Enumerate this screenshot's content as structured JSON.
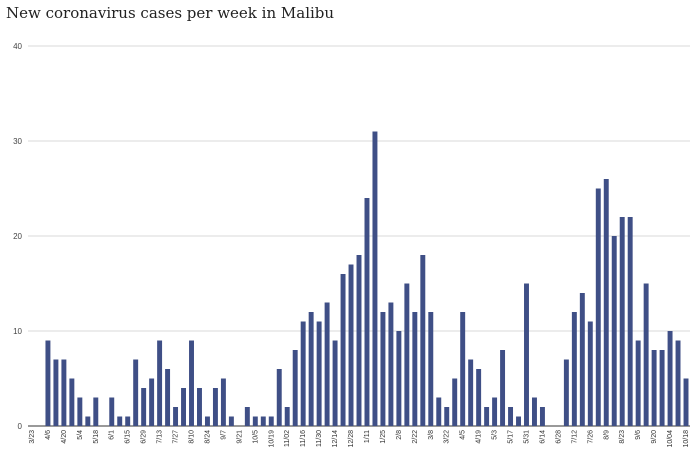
{
  "chart_data": {
    "type": "bar",
    "title": "New coronavirus cases per week in Malibu",
    "xlabel": "",
    "ylabel": "",
    "ylim": [
      0,
      40
    ],
    "yticks": [
      0,
      10,
      20,
      30,
      40
    ],
    "grid": true,
    "bar_color": "#3f4f86",
    "categories": [
      "3/23",
      "3/30",
      "4/6",
      "4/13",
      "4/20",
      "4/27",
      "5/4",
      "5/11",
      "5/18",
      "5/25",
      "6/1",
      "6/8",
      "6/15",
      "6/22",
      "6/29",
      "7/6",
      "7/13",
      "7/20",
      "7/27",
      "8/3",
      "8/10",
      "8/17",
      "8/24",
      "8/31",
      "9/7",
      "9/14",
      "9/21",
      "9/28",
      "10/5",
      "10/12",
      "10/19",
      "10/26",
      "11/02",
      "11/09",
      "11/16",
      "11/23",
      "11/30",
      "12/7",
      "12/14",
      "12/21",
      "12/28",
      "1/4",
      "1/11",
      "1/18",
      "1/25",
      "2/1",
      "2/8",
      "2/15",
      "2/22",
      "3/1",
      "3/8",
      "3/15",
      "3/22",
      "3/29",
      "4/5",
      "4/12",
      "4/19",
      "4/26",
      "5/3",
      "5/10",
      "5/17",
      "5/24",
      "5/31",
      "6/7",
      "6/14",
      "6/21",
      "6/28",
      "7/5",
      "7/12",
      "7/19",
      "7/26",
      "8/2",
      "8/9",
      "8/16",
      "8/23",
      "8/30",
      "9/6",
      "9/13",
      "9/20",
      "9/27",
      "10/04",
      "10/11",
      "10/18"
    ],
    "tick_labels": [
      "3/23",
      "",
      "4/6",
      "",
      "4/20",
      "",
      "5/4",
      "",
      "5/18",
      "",
      "6/1",
      "",
      "6/15",
      "",
      "6/29",
      "",
      "7/13",
      "",
      "7/27",
      "",
      "8/10",
      "",
      "8/24",
      "",
      "9/7",
      "",
      "9/21",
      "",
      "10/5",
      "",
      "10/19",
      "",
      "11/02",
      "",
      "11/16",
      "",
      "11/30",
      "",
      "12/14",
      "",
      "12/28",
      "",
      "1/11",
      "",
      "1/25",
      "",
      "2/8",
      "",
      "2/22",
      "",
      "3/8",
      "",
      "3/22",
      "",
      "4/5",
      "",
      "4/19",
      "",
      "5/3",
      "",
      "5/17",
      "",
      "5/31",
      "",
      "6/14",
      "",
      "6/28",
      "",
      "7/12",
      "",
      "7/26",
      "",
      "8/9",
      "",
      "8/23",
      "",
      "9/6",
      "",
      "9/20",
      "",
      "10/04",
      "",
      "10/18"
    ],
    "values": [
      0,
      0,
      9,
      7,
      7,
      5,
      3,
      1,
      3,
      0,
      3,
      1,
      1,
      7,
      4,
      5,
      9,
      6,
      2,
      4,
      9,
      4,
      1,
      4,
      5,
      1,
      0,
      2,
      1,
      1,
      1,
      6,
      2,
      8,
      11,
      12,
      11,
      13,
      9,
      16,
      17,
      18,
      24,
      31,
      12,
      13,
      10,
      15,
      12,
      18,
      12,
      3,
      2,
      5,
      12,
      7,
      6,
      2,
      3,
      8,
      2,
      1,
      15,
      3,
      2,
      0,
      0,
      7,
      12,
      14,
      11,
      25,
      26,
      20,
      22,
      22,
      9,
      15,
      8,
      8,
      10,
      9,
      5
    ]
  }
}
